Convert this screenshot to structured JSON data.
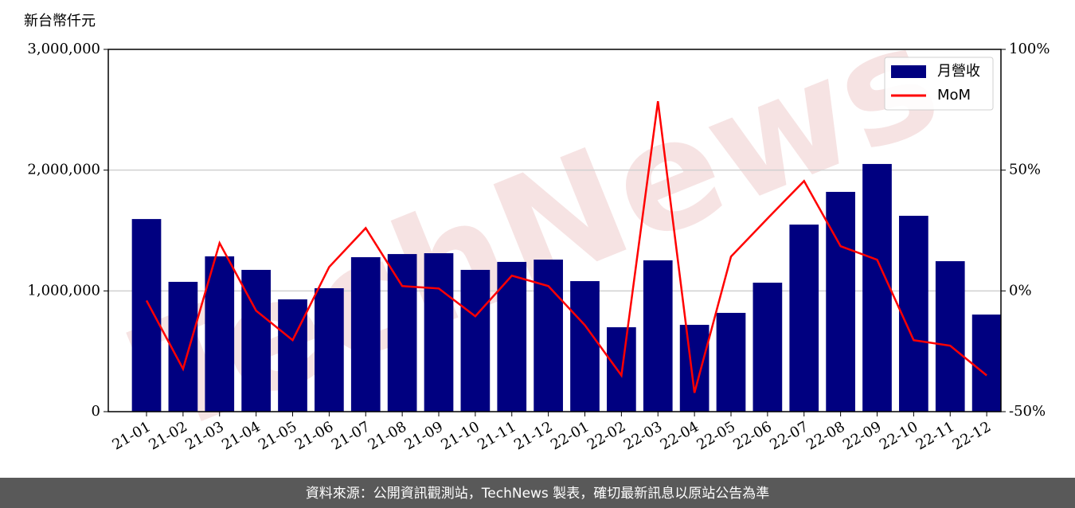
{
  "chart_data": {
    "type": "bar_line",
    "y_label": "新台幣仟元",
    "watermark": "TechNews",
    "source": "資料來源：公開資訊觀測站，TechNews 製表，確切最新訊息以原站公告為準",
    "categories": [
      "21-01",
      "21-02",
      "21-03",
      "21-04",
      "21-05",
      "21-06",
      "21-07",
      "21-08",
      "21-09",
      "21-10",
      "21-11",
      "21-12",
      "22-01",
      "22-02",
      "22-03",
      "22-04",
      "22-05",
      "22-06",
      "22-07",
      "22-08",
      "22-09",
      "22-10",
      "22-11",
      "22-12"
    ],
    "series": [
      {
        "name": "月營收",
        "type": "bar",
        "color": "#000080",
        "values": [
          1595000,
          1075000,
          1286000,
          1174000,
          930000,
          1022000,
          1279000,
          1305000,
          1312000,
          1174000,
          1240000,
          1259000,
          1081000,
          699000,
          1253000,
          719000,
          818000,
          1068000,
          1549000,
          1820000,
          2051000,
          1622000,
          1246000,
          804000
        ]
      },
      {
        "name": "MoM",
        "type": "line",
        "axis": "y2",
        "color": "#ff0000",
        "values": [
          -4,
          -32.3,
          19.8,
          -8.2,
          -20.4,
          9.9,
          26,
          2,
          1,
          -10.5,
          6.3,
          2,
          -14.2,
          -35,
          78.5,
          -42.2,
          14.2,
          30,
          45.5,
          18.5,
          12.9,
          -20.4,
          -22.7,
          -35
        ]
      }
    ],
    "ylim": [
      0,
      3000000
    ],
    "yticks": [
      0,
      {
        "value": 1000000,
        "label": "1,000,000"
      },
      {
        "value": 2000000,
        "label": "2,000,000"
      },
      {
        "value": 3000000,
        "label": "3,000,000"
      }
    ],
    "y2lim": [
      -50,
      100
    ],
    "y2ticks": [
      {
        "value": -50,
        "label": "-50%"
      },
      {
        "value": 0,
        "label": "0%"
      },
      {
        "value": 50,
        "label": "50%"
      },
      {
        "value": 100,
        "label": "100%"
      }
    ],
    "grid": true,
    "legend": "upper right"
  }
}
